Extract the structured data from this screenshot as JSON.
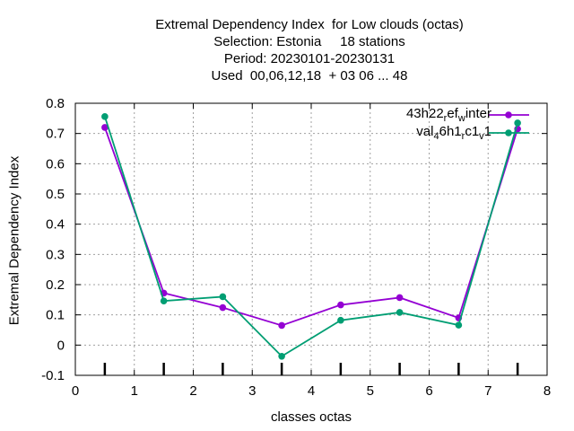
{
  "colors": {
    "series1": "#9400d3",
    "series2": "#009e73",
    "grid": "#a0a0a0",
    "axis": "#000000"
  },
  "chart_data": {
    "type": "line",
    "title": [
      "Extremal Dependency Index  for Low clouds (octas)",
      "Selection: Estonia     18 stations",
      "Period: 20230101-20230131",
      "Used  00,06,12,18  + 03 06 ... 48"
    ],
    "xlabel": "classes octas",
    "ylabel": "Extremal Dependency Index",
    "xlim": [
      0,
      8
    ],
    "ylim": [
      -0.1,
      0.8
    ],
    "xticks": [
      0,
      1,
      2,
      3,
      4,
      5,
      6,
      7,
      8
    ],
    "yticks": [
      -0.1,
      0,
      0.1,
      0.2,
      0.3,
      0.4,
      0.5,
      0.6,
      0.7,
      0.8
    ],
    "xtick_labels": [
      "0",
      "1",
      "2",
      "3",
      "4",
      "5",
      "6",
      "7",
      "8"
    ],
    "ytick_labels": [
      "-0.1",
      "0",
      "0.1",
      "0.2",
      "0.3",
      "0.4",
      "0.5",
      "0.6",
      "0.7",
      "0.8"
    ],
    "grid": true,
    "legend_position": "top-right",
    "series": [
      {
        "name": "43h22_ref_winter",
        "legend": {
          "a": "43h22",
          "b": "r",
          "c": "ef",
          "d": "w",
          "e": "inter"
        },
        "color": "#9400d3",
        "marker": "circle",
        "x": [
          0.5,
          1.5,
          2.5,
          3.5,
          4.5,
          5.5,
          6.5,
          7.5
        ],
        "y": [
          0.72,
          0.172,
          0.124,
          0.065,
          0.133,
          0.157,
          0.09,
          0.715
        ]
      },
      {
        "name": "val_46h1_rc1_v1",
        "legend": {
          "a": "val",
          "b": "4",
          "c": "6h1",
          "d": "r",
          "e": "c1",
          "f": "v",
          "g": "1"
        },
        "color": "#009e73",
        "marker": "circle",
        "x": [
          0.5,
          1.5,
          2.5,
          3.5,
          4.5,
          5.5,
          6.5,
          7.5
        ],
        "y": [
          0.756,
          0.146,
          0.16,
          -0.037,
          0.082,
          0.108,
          0.066,
          0.735
        ]
      }
    ]
  }
}
